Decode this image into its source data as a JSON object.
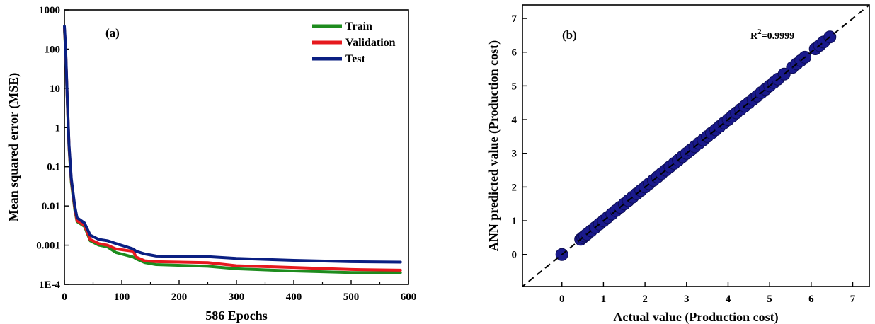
{
  "chart_data": [
    {
      "type": "line",
      "panel_label": "(a)",
      "xlabel": "586 Epochs",
      "ylabel": "Mean squared error (MSE)",
      "xlim": [
        0,
        600
      ],
      "ylim": [
        0.0001,
        1000
      ],
      "yscale": "log",
      "xticks": [
        0,
        100,
        200,
        300,
        400,
        500,
        600
      ],
      "yticks": [
        {
          "value": 0.0001,
          "label": "1E-4"
        },
        {
          "value": 0.001,
          "label": "0.001"
        },
        {
          "value": 0.01,
          "label": "0.01"
        },
        {
          "value": 0.1,
          "label": "0.1"
        },
        {
          "value": 1,
          "label": "1"
        },
        {
          "value": 10,
          "label": "10"
        },
        {
          "value": 100,
          "label": "100"
        },
        {
          "value": 1000,
          "label": "1000"
        }
      ],
      "legend_position": "top-right",
      "series": [
        {
          "name": "Train",
          "color": "#1e8c1e",
          "points": [
            [
              0,
              300
            ],
            [
              2,
              100
            ],
            [
              5,
              5
            ],
            [
              8,
              0.3
            ],
            [
              12,
              0.04
            ],
            [
              18,
              0.008
            ],
            [
              22,
              0.004
            ],
            [
              35,
              0.003
            ],
            [
              45,
              0.0013
            ],
            [
              60,
              0.001
            ],
            [
              75,
              0.0009
            ],
            [
              90,
              0.00065
            ],
            [
              120,
              0.0005
            ],
            [
              125,
              0.00045
            ],
            [
              140,
              0.00036
            ],
            [
              160,
              0.00032
            ],
            [
              250,
              0.00029
            ],
            [
              300,
              0.00025
            ],
            [
              400,
              0.00022
            ],
            [
              500,
              0.0002
            ],
            [
              586,
              0.0002
            ]
          ]
        },
        {
          "name": "Validation",
          "color": "#e6191e",
          "points": [
            [
              0,
              340
            ],
            [
              2,
              110
            ],
            [
              5,
              5.5
            ],
            [
              8,
              0.33
            ],
            [
              12,
              0.045
            ],
            [
              18,
              0.009
            ],
            [
              22,
              0.0042
            ],
            [
              35,
              0.0032
            ],
            [
              45,
              0.0014
            ],
            [
              60,
              0.0011
            ],
            [
              75,
              0.001
            ],
            [
              90,
              0.0008
            ],
            [
              120,
              0.0007
            ],
            [
              125,
              0.0005
            ],
            [
              140,
              0.0004
            ],
            [
              160,
              0.00038
            ],
            [
              250,
              0.00036
            ],
            [
              300,
              0.0003
            ],
            [
              400,
              0.00027
            ],
            [
              500,
              0.00024
            ],
            [
              586,
              0.00023
            ]
          ]
        },
        {
          "name": "Test",
          "color": "#0a1f82",
          "points": [
            [
              0,
              380
            ],
            [
              2,
              120
            ],
            [
              5,
              6
            ],
            [
              8,
              0.36
            ],
            [
              12,
              0.05
            ],
            [
              18,
              0.01
            ],
            [
              22,
              0.005
            ],
            [
              35,
              0.0037
            ],
            [
              45,
              0.0018
            ],
            [
              60,
              0.0014
            ],
            [
              75,
              0.0013
            ],
            [
              90,
              0.0011
            ],
            [
              120,
              0.0008
            ],
            [
              125,
              0.0007
            ],
            [
              140,
              0.0006
            ],
            [
              160,
              0.00053
            ],
            [
              250,
              0.00051
            ],
            [
              300,
              0.00046
            ],
            [
              400,
              0.00041
            ],
            [
              500,
              0.00038
            ],
            [
              586,
              0.00037
            ]
          ]
        }
      ]
    },
    {
      "type": "scatter",
      "panel_label": "(b)",
      "xlabel": "Actual value (Production cost)",
      "ylabel": "ANN predicted value (Production cost)",
      "xlim": [
        -0.95,
        7.4
      ],
      "ylim": [
        -0.95,
        7.4
      ],
      "xticks": [
        0,
        1,
        2,
        3,
        4,
        5,
        6,
        7
      ],
      "yticks": [
        0,
        1,
        2,
        3,
        4,
        5,
        6,
        7
      ],
      "annotation": {
        "base": "R",
        "sup": "2",
        "text": "=0.9999"
      },
      "marker_color": "#1a1a8c",
      "reference_line": {
        "from": [
          -1,
          -1
        ],
        "to": [
          7.6,
          7.6
        ],
        "style": "dashed"
      },
      "points": [
        [
          0,
          0
        ],
        [
          0.45,
          0.45
        ],
        [
          0.5,
          0.5
        ],
        [
          0.55,
          0.55
        ],
        [
          0.6,
          0.6
        ],
        [
          0.7,
          0.7
        ],
        [
          0.8,
          0.8
        ],
        [
          0.9,
          0.9
        ],
        [
          1.0,
          1.0
        ],
        [
          1.1,
          1.1
        ],
        [
          1.2,
          1.2
        ],
        [
          1.3,
          1.3
        ],
        [
          1.4,
          1.4
        ],
        [
          1.5,
          1.5
        ],
        [
          1.6,
          1.6
        ],
        [
          1.7,
          1.7
        ],
        [
          1.8,
          1.8
        ],
        [
          1.9,
          1.9
        ],
        [
          2.0,
          2.0
        ],
        [
          2.1,
          2.1
        ],
        [
          2.2,
          2.2
        ],
        [
          2.3,
          2.3
        ],
        [
          2.4,
          2.4
        ],
        [
          2.5,
          2.5
        ],
        [
          2.6,
          2.6
        ],
        [
          2.7,
          2.7
        ],
        [
          2.8,
          2.8
        ],
        [
          2.9,
          2.9
        ],
        [
          3.0,
          3.0
        ],
        [
          3.1,
          3.1
        ],
        [
          3.2,
          3.2
        ],
        [
          3.3,
          3.3
        ],
        [
          3.4,
          3.4
        ],
        [
          3.5,
          3.5
        ],
        [
          3.6,
          3.6
        ],
        [
          3.7,
          3.7
        ],
        [
          3.8,
          3.8
        ],
        [
          3.9,
          3.9
        ],
        [
          4.0,
          4.0
        ],
        [
          4.1,
          4.1
        ],
        [
          4.2,
          4.2
        ],
        [
          4.3,
          4.3
        ],
        [
          4.4,
          4.4
        ],
        [
          4.5,
          4.5
        ],
        [
          4.6,
          4.6
        ],
        [
          4.7,
          4.7
        ],
        [
          4.8,
          4.8
        ],
        [
          4.9,
          4.9
        ],
        [
          5.0,
          5.0
        ],
        [
          5.1,
          5.1
        ],
        [
          5.2,
          5.2
        ],
        [
          5.35,
          5.35
        ],
        [
          5.55,
          5.55
        ],
        [
          5.65,
          5.65
        ],
        [
          5.75,
          5.75
        ],
        [
          5.85,
          5.85
        ],
        [
          6.1,
          6.1
        ],
        [
          6.2,
          6.2
        ],
        [
          6.3,
          6.3
        ],
        [
          6.45,
          6.45
        ]
      ]
    }
  ]
}
